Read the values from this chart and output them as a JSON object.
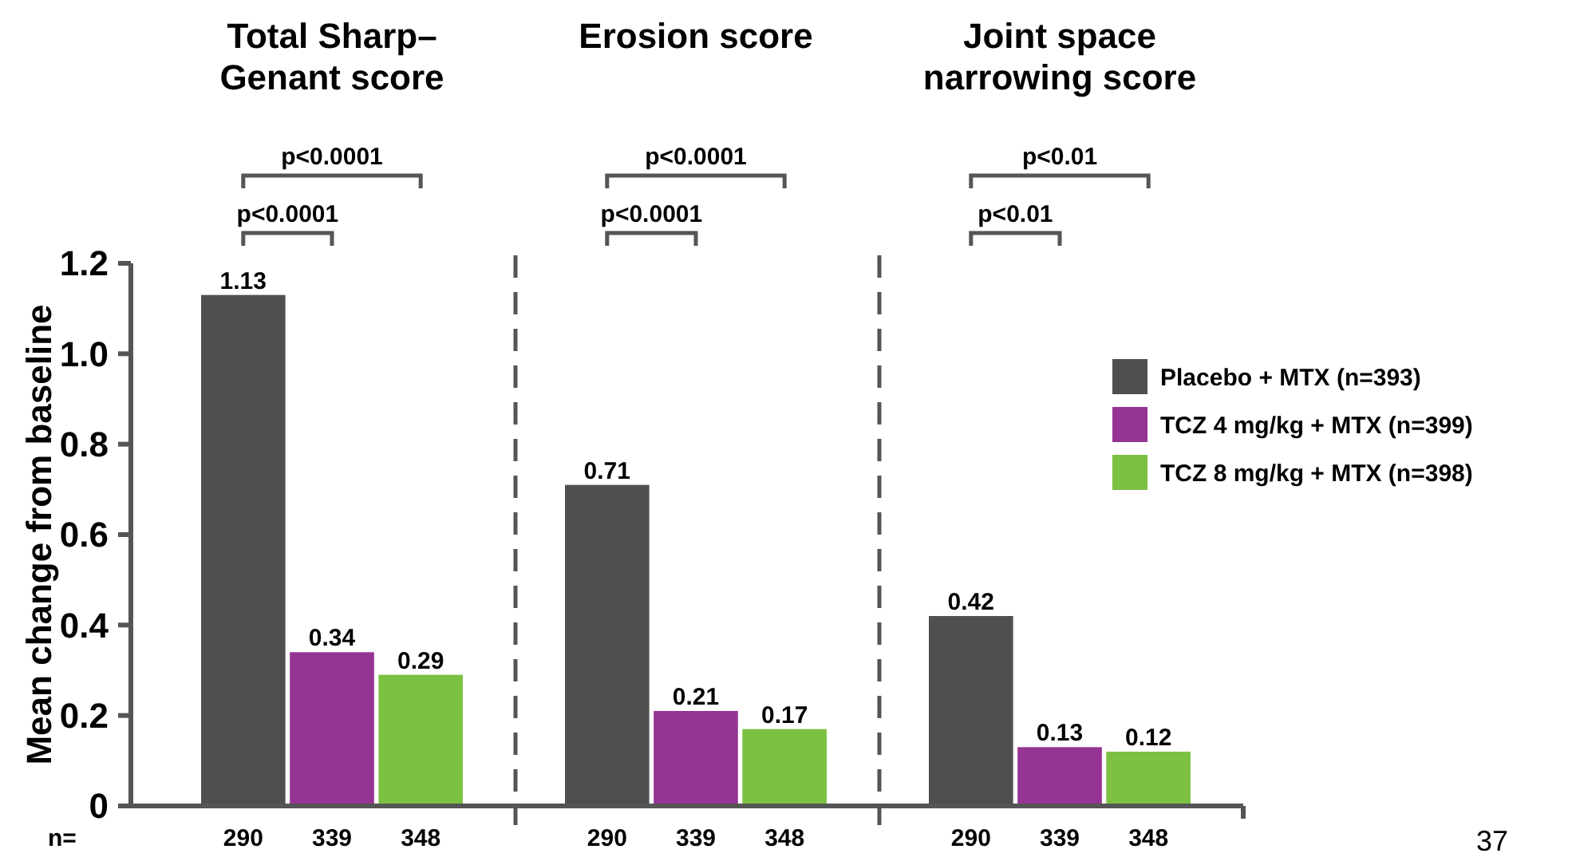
{
  "chart_data": {
    "type": "bar",
    "ylabel": "Mean change from baseline",
    "categories": [
      "Total Sharp–Genant score",
      "Erosion score",
      "Joint space narrowing score"
    ],
    "series": [
      {
        "name": "Placebo + MTX (n=393)",
        "color": "#4f4f4f",
        "values": [
          1.13,
          0.71,
          0.42
        ]
      },
      {
        "name": "TCZ 4 mg/kg + MTX (n=399)",
        "color": "#953493",
        "values": [
          0.34,
          0.21,
          0.13
        ]
      },
      {
        "name": "TCZ 8 mg/kg + MTX (n=398)",
        "color": "#7cc142",
        "values": [
          0.29,
          0.17,
          0.12
        ]
      }
    ],
    "ylim": [
      0,
      1.2
    ],
    "yticks": [
      0,
      0.2,
      0.4,
      0.6,
      0.8,
      {
        "value": 1,
        "label": "1.0"
      },
      1.2
    ],
    "data_labels": true,
    "legend": "right",
    "annotations": [
      "n=",
      "290",
      "339",
      "348",
      "290",
      "339",
      "348",
      "290",
      "339",
      "348",
      "p<0.0001",
      "p<0.0001",
      "p<0.0001",
      "p<0.0001",
      "p<0.01",
      "p<0.01",
      "37"
    ]
  }
}
